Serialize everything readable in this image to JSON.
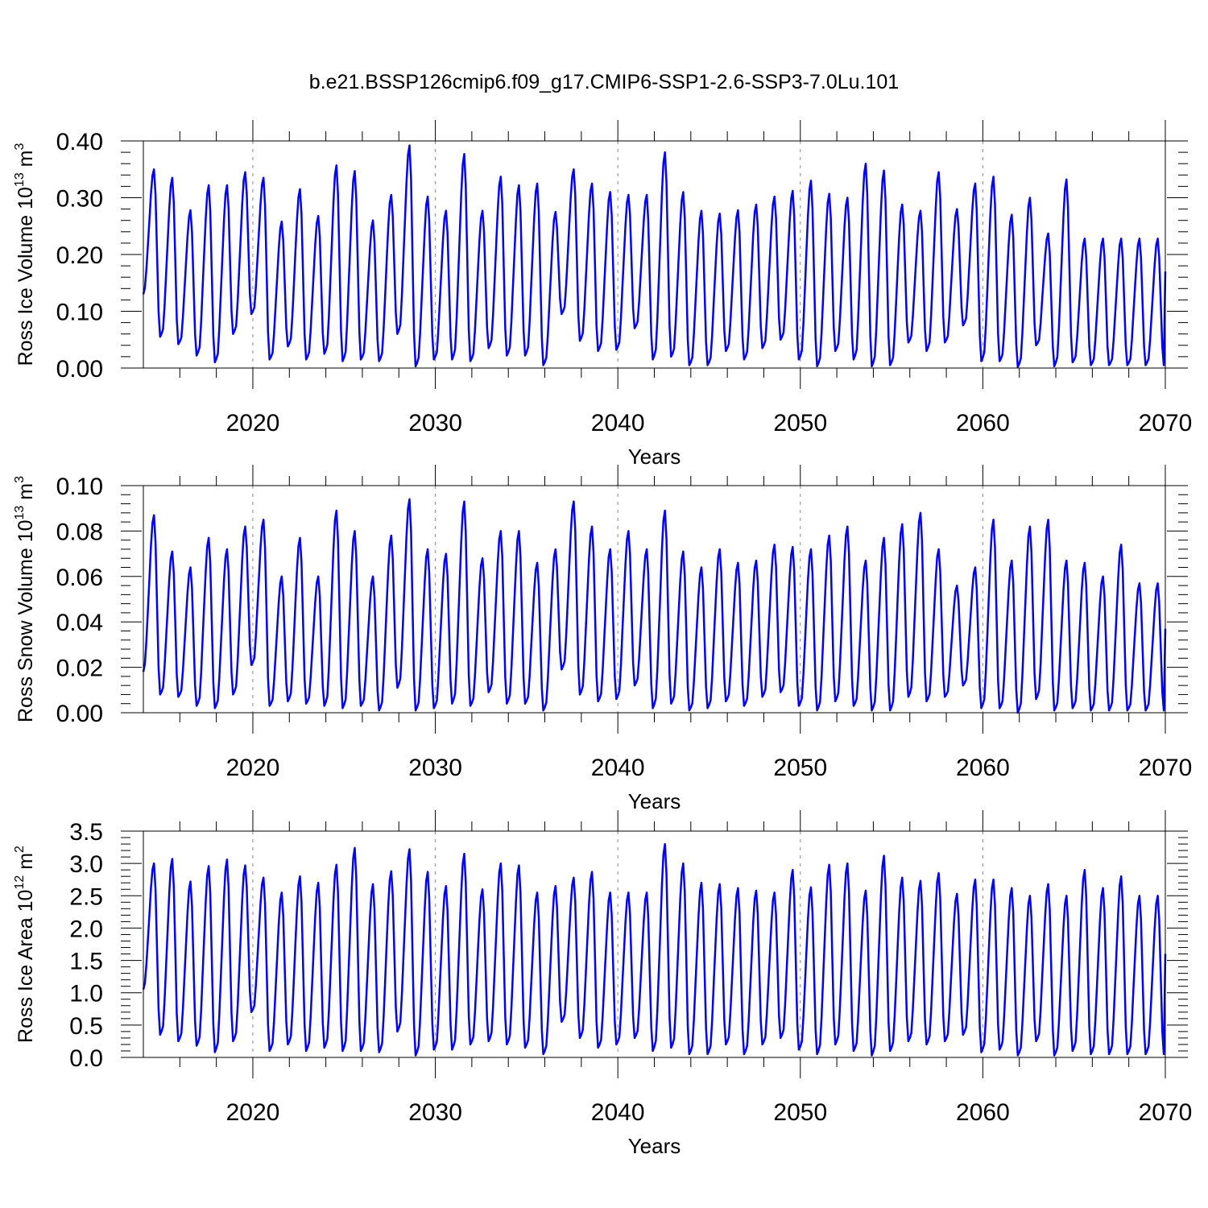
{
  "title": "b.e21.BSSP126cmip6.f09_g17.CMIP6-SSP1-2.6-SSP3-7.0Lu.101",
  "colors": {
    "series": "#0000ff",
    "axis": "#000000",
    "refline": "#888888"
  },
  "chart_data": [
    {
      "type": "line",
      "ylabel": {
        "prefix": "Ross Ice Volume 10",
        "exp": "13",
        "unit": " m",
        "unit_exp": "3"
      },
      "xlabel": "Years",
      "xlim": [
        2014,
        2070
      ],
      "ylim": [
        0,
        0.4
      ],
      "yticks": [
        0.0,
        0.1,
        0.2,
        0.3,
        0.4
      ],
      "ytick_labels": [
        "0.00",
        "0.10",
        "0.20",
        "0.30",
        "0.40"
      ],
      "xticks": [
        2020,
        2030,
        2040,
        2050,
        2060,
        2070
      ],
      "xtick_labels": [
        "2020",
        "2030",
        "2040",
        "2050",
        "2060",
        "2070"
      ],
      "reference_lines_x": [
        2020,
        2030,
        2040,
        2050,
        2060
      ],
      "series": [
        {
          "min": [
            0.055,
            0.042,
            0.022,
            0.01,
            0.06,
            0.095,
            0.015,
            0.038,
            0.015,
            0.025,
            0.012,
            0.015,
            0.012,
            0.06,
            0.003,
            0.015,
            0.015,
            0.012,
            0.035,
            0.022,
            0.022,
            0.005,
            0.095,
            0.048,
            0.03,
            0.032,
            0.07,
            0.015,
            0.02,
            0.005,
            0.005,
            0.03,
            0.015,
            0.035,
            0.05,
            0.015,
            0.003,
            0.03,
            0.015,
            0.003,
            0.005,
            0.045,
            0.03,
            0.045,
            0.075,
            0.012,
            0.012,
            0.002,
            0.04,
            0.003,
            0.01,
            0.005,
            0.005,
            0.005,
            0.005,
            0.005
          ],
          "max": [
            0.35,
            0.335,
            0.278,
            0.322,
            0.322,
            0.345,
            0.335,
            0.258,
            0.315,
            0.268,
            0.357,
            0.347,
            0.26,
            0.305,
            0.392,
            0.302,
            0.277,
            0.377,
            0.277,
            0.337,
            0.322,
            0.325,
            0.275,
            0.35,
            0.325,
            0.31,
            0.305,
            0.305,
            0.38,
            0.31,
            0.277,
            0.272,
            0.278,
            0.288,
            0.302,
            0.312,
            0.33,
            0.307,
            0.3,
            0.36,
            0.348,
            0.288,
            0.277,
            0.345,
            0.28,
            0.325,
            0.337,
            0.27,
            0.3,
            0.237,
            0.332,
            0.228,
            0.228,
            0.228,
            0.228,
            0.228
          ],
          "start": 0.13,
          "end": 0.17
        }
      ]
    },
    {
      "type": "line",
      "ylabel": {
        "prefix": "Ross Snow Volume 10",
        "exp": "13",
        "unit": " m",
        "unit_exp": "3"
      },
      "xlabel": "Years",
      "xlim": [
        2014,
        2070
      ],
      "ylim": [
        0,
        0.1
      ],
      "yticks": [
        0.0,
        0.02,
        0.04,
        0.06,
        0.08,
        0.1
      ],
      "ytick_labels": [
        "0.00",
        "0.02",
        "0.04",
        "0.06",
        "0.08",
        "0.10"
      ],
      "xticks": [
        2020,
        2030,
        2040,
        2050,
        2060,
        2070
      ],
      "xtick_labels": [
        "2020",
        "2030",
        "2040",
        "2050",
        "2060",
        "2070"
      ],
      "reference_lines_x": [
        2020,
        2030,
        2040,
        2050,
        2060
      ],
      "series": [
        {
          "min": [
            0.008,
            0.007,
            0.003,
            0.002,
            0.008,
            0.021,
            0.003,
            0.005,
            0.004,
            0.003,
            0.002,
            0.003,
            0.001,
            0.011,
            0.001,
            0.002,
            0.004,
            0.003,
            0.009,
            0.004,
            0.004,
            0.001,
            0.019,
            0.008,
            0.005,
            0.006,
            0.012,
            0.002,
            0.004,
            0.001,
            0.002,
            0.005,
            0.003,
            0.007,
            0.009,
            0.003,
            0.001,
            0.005,
            0.003,
            0.001,
            0.001,
            0.007,
            0.005,
            0.007,
            0.012,
            0.002,
            0.002,
            0.0,
            0.006,
            0.001,
            0.002,
            0.001,
            0.001,
            0.001,
            0.001,
            0.001
          ],
          "max": [
            0.087,
            0.071,
            0.064,
            0.077,
            0.072,
            0.082,
            0.085,
            0.06,
            0.077,
            0.06,
            0.089,
            0.08,
            0.06,
            0.078,
            0.094,
            0.072,
            0.07,
            0.093,
            0.068,
            0.08,
            0.08,
            0.066,
            0.072,
            0.093,
            0.082,
            0.072,
            0.08,
            0.072,
            0.089,
            0.071,
            0.064,
            0.072,
            0.066,
            0.067,
            0.074,
            0.073,
            0.072,
            0.078,
            0.082,
            0.067,
            0.077,
            0.083,
            0.088,
            0.072,
            0.056,
            0.064,
            0.085,
            0.067,
            0.082,
            0.085,
            0.067,
            0.066,
            0.06,
            0.074,
            0.057,
            0.057
          ],
          "start": 0.018,
          "end": 0.037
        }
      ]
    },
    {
      "type": "line",
      "ylabel": {
        "prefix": "Ross Ice Area 10",
        "exp": "12",
        "unit": " m",
        "unit_exp": "2"
      },
      "xlabel": "Years",
      "xlim": [
        2014,
        2070
      ],
      "ylim": [
        0,
        3.5
      ],
      "yticks": [
        0.0,
        0.5,
        1.0,
        1.5,
        2.0,
        2.5,
        3.0,
        3.5
      ],
      "ytick_labels": [
        "0.0",
        "0.5",
        "1.0",
        "1.5",
        "2.0",
        "2.5",
        "3.0",
        "3.5"
      ],
      "xticks": [
        2020,
        2030,
        2040,
        2050,
        2060,
        2070
      ],
      "xtick_labels": [
        "2020",
        "2030",
        "2040",
        "2050",
        "2060",
        "2070"
      ],
      "reference_lines_x": [
        2020,
        2030,
        2040,
        2050,
        2060
      ],
      "series": [
        {
          "min": [
            0.35,
            0.25,
            0.18,
            0.08,
            0.25,
            0.7,
            0.1,
            0.2,
            0.1,
            0.15,
            0.1,
            0.1,
            0.08,
            0.4,
            0.03,
            0.12,
            0.12,
            0.2,
            0.25,
            0.2,
            0.15,
            0.05,
            0.55,
            0.3,
            0.15,
            0.2,
            0.3,
            0.1,
            0.15,
            0.05,
            0.05,
            0.2,
            0.05,
            0.2,
            0.3,
            0.12,
            0.05,
            0.2,
            0.1,
            0.03,
            0.1,
            0.25,
            0.2,
            0.25,
            0.35,
            0.08,
            0.12,
            0.03,
            0.25,
            0.03,
            0.1,
            0.05,
            0.05,
            0.05,
            0.05,
            0.05
          ],
          "max": [
            3.0,
            3.07,
            2.72,
            2.96,
            3.06,
            2.97,
            2.78,
            2.55,
            2.8,
            2.7,
            2.98,
            3.24,
            2.68,
            2.88,
            3.22,
            2.87,
            2.65,
            3.15,
            2.6,
            3.0,
            2.97,
            2.55,
            2.65,
            2.78,
            2.87,
            2.55,
            2.55,
            2.55,
            3.3,
            3.0,
            2.7,
            2.68,
            2.62,
            2.58,
            2.55,
            2.9,
            2.63,
            2.98,
            3.0,
            2.58,
            3.12,
            2.78,
            2.73,
            2.85,
            2.53,
            2.75,
            2.75,
            2.62,
            2.5,
            2.68,
            2.5,
            2.9,
            2.62,
            2.8,
            2.5,
            2.5
          ],
          "start": 1.05,
          "end": 1.6
        }
      ]
    }
  ]
}
